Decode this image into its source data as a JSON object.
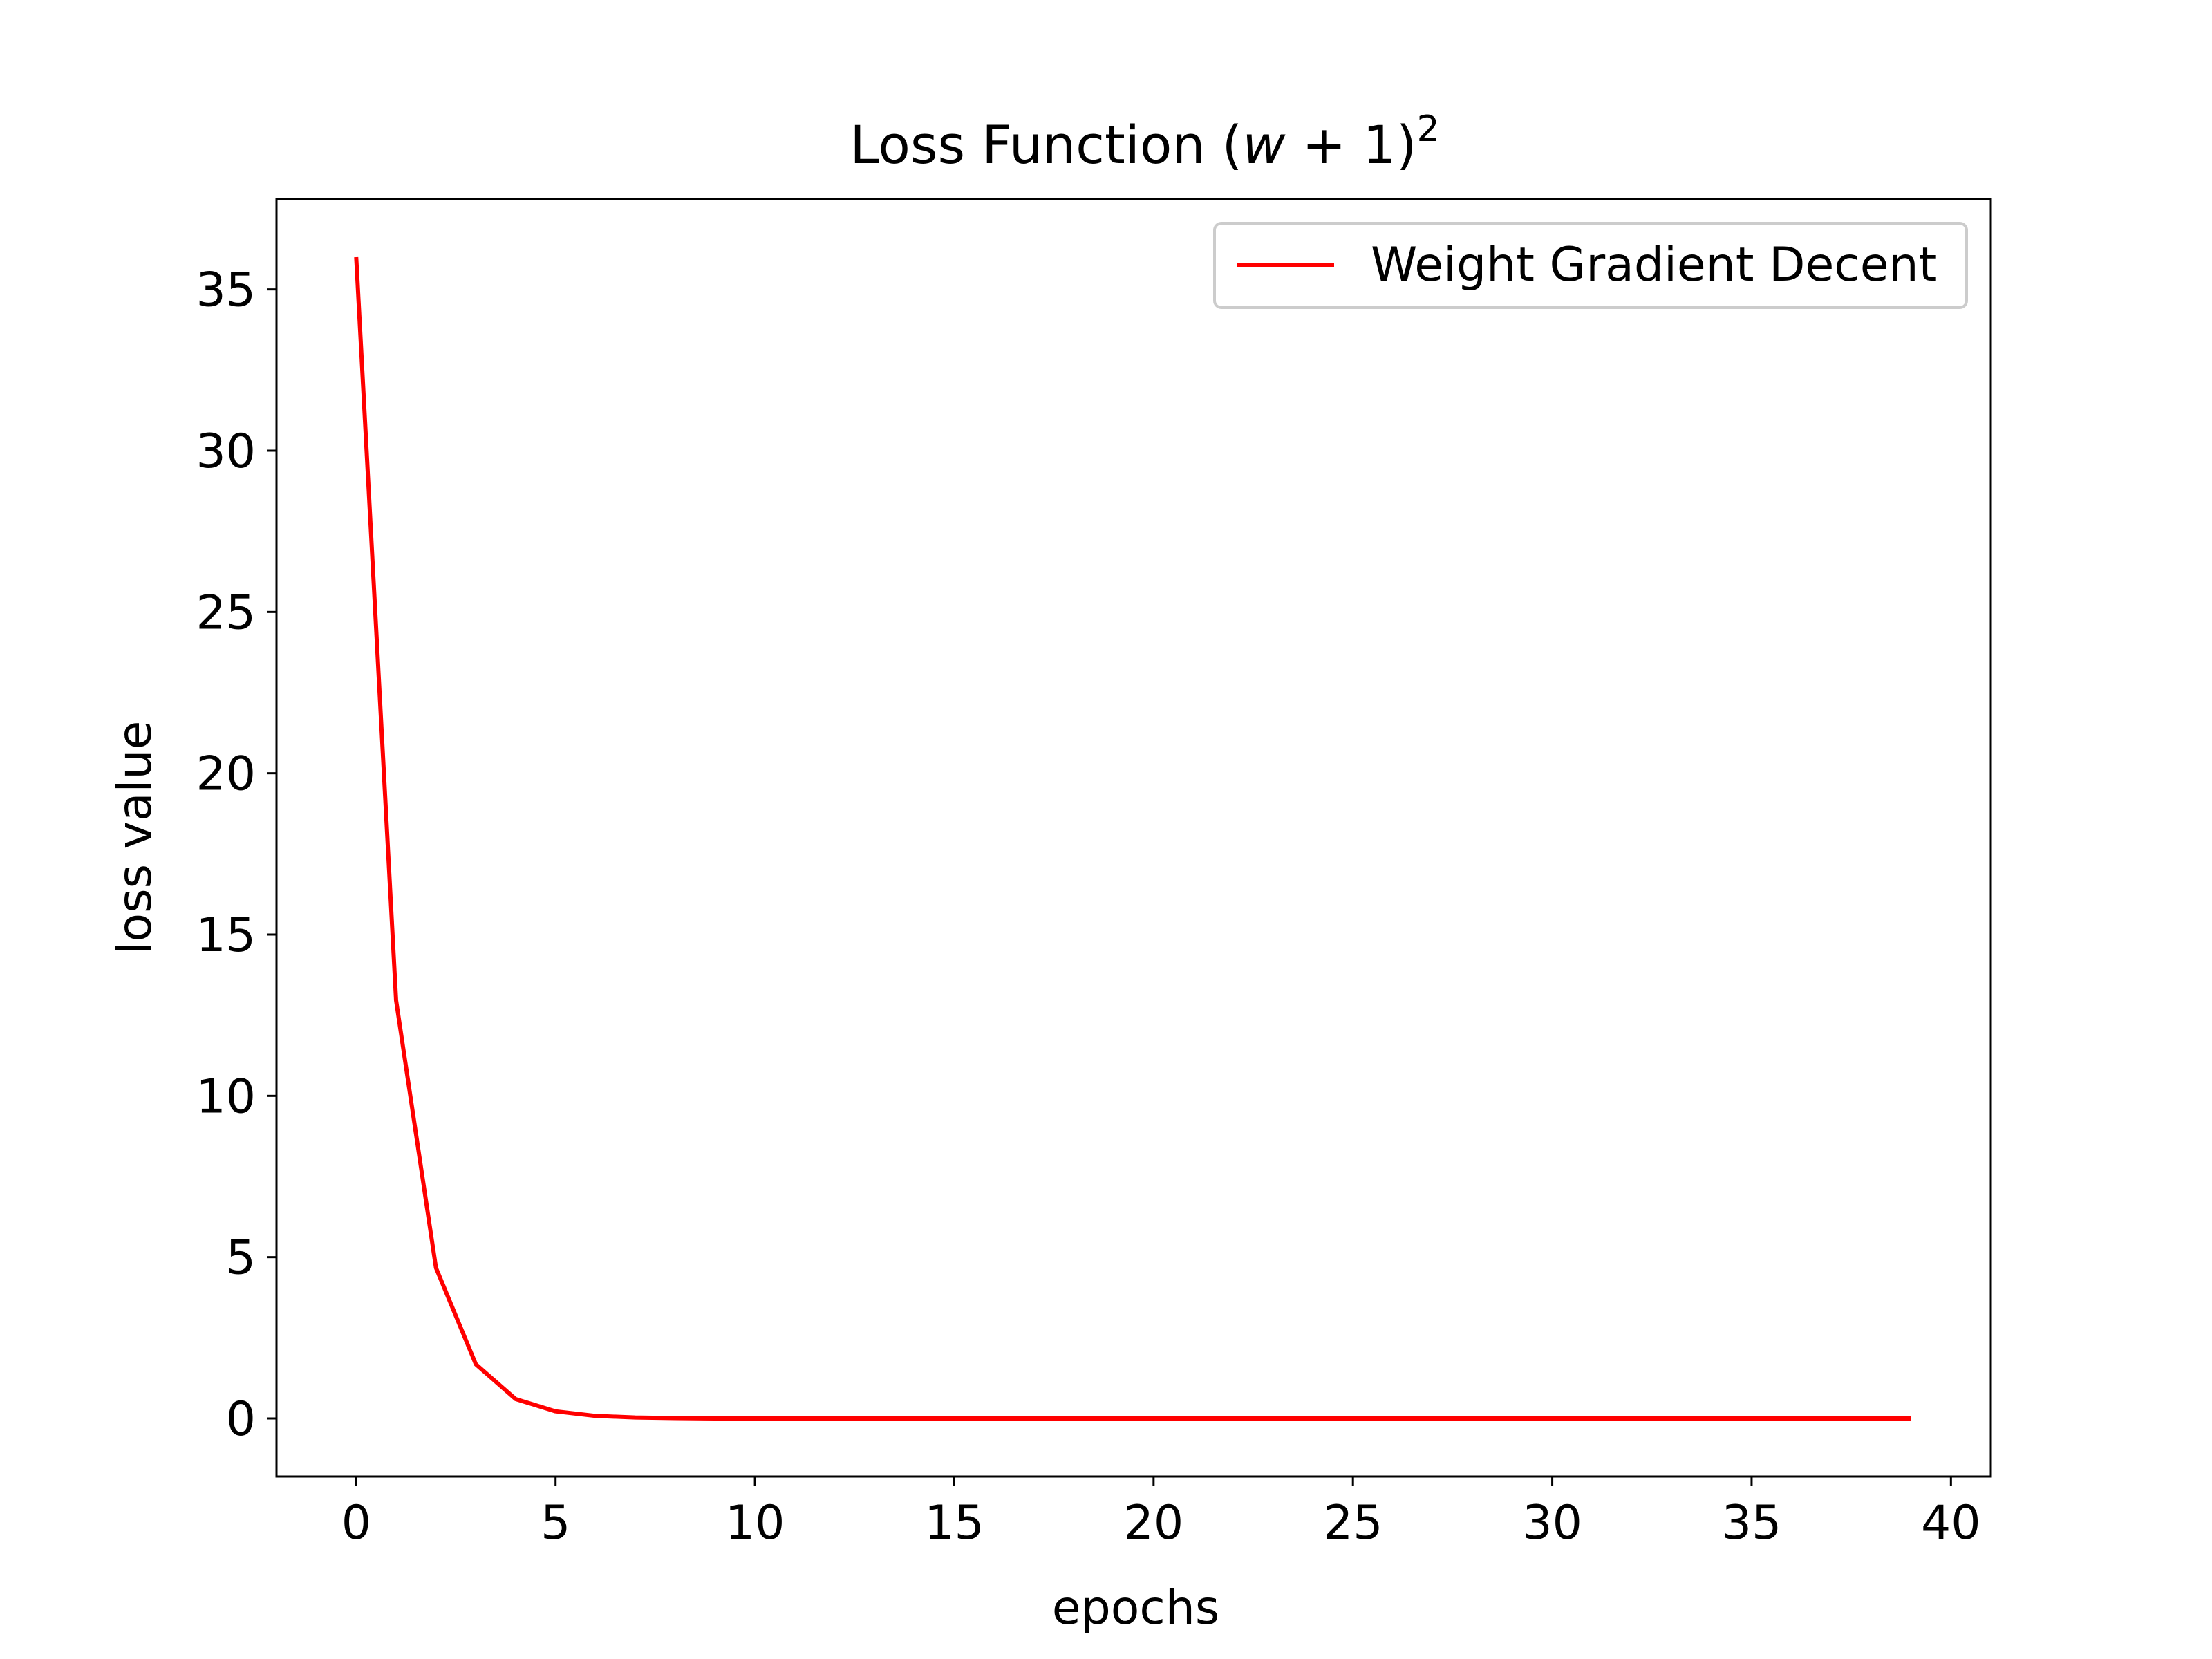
{
  "chart_data": {
    "type": "line",
    "title": "Loss Function (w + 1)²",
    "title_parts": {
      "prefix": "Loss Function (",
      "var": "w",
      "suffix": " + 1)",
      "exponent": "2"
    },
    "xlabel": "epochs",
    "ylabel": "loss value",
    "xlim": [
      -2,
      41
    ],
    "ylim": [
      -1.8,
      37.8
    ],
    "x_ticks": [
      0,
      5,
      10,
      15,
      20,
      25,
      30,
      35,
      40
    ],
    "x_tick_labels": [
      "0",
      "5",
      "10",
      "15",
      "20",
      "25",
      "30",
      "35",
      "40"
    ],
    "y_ticks": [
      0,
      5,
      10,
      15,
      20,
      25,
      30,
      35
    ],
    "y_tick_labels": [
      "0",
      "5",
      "10",
      "15",
      "20",
      "25",
      "30",
      "35"
    ],
    "grid": false,
    "legend": {
      "position": "upper right",
      "entries": [
        "Weight Gradient Decent"
      ]
    },
    "series": [
      {
        "name": "Weight Gradient Decent",
        "color": "#ff0000",
        "x": [
          0,
          1,
          2,
          3,
          4,
          5,
          6,
          7,
          8,
          9,
          10,
          11,
          12,
          13,
          14,
          15,
          16,
          17,
          18,
          19,
          20,
          21,
          22,
          23,
          24,
          25,
          26,
          27,
          28,
          29,
          30,
          31,
          32,
          33,
          34,
          35,
          36,
          37,
          38,
          39
        ],
        "values": [
          36,
          12.96,
          4.67,
          1.68,
          0.6,
          0.22,
          0.08,
          0.03,
          0.01,
          0,
          0,
          0,
          0,
          0,
          0,
          0,
          0,
          0,
          0,
          0,
          0,
          0,
          0,
          0,
          0,
          0,
          0,
          0,
          0,
          0,
          0,
          0,
          0,
          0,
          0,
          0,
          0,
          0,
          0,
          0
        ]
      }
    ]
  }
}
